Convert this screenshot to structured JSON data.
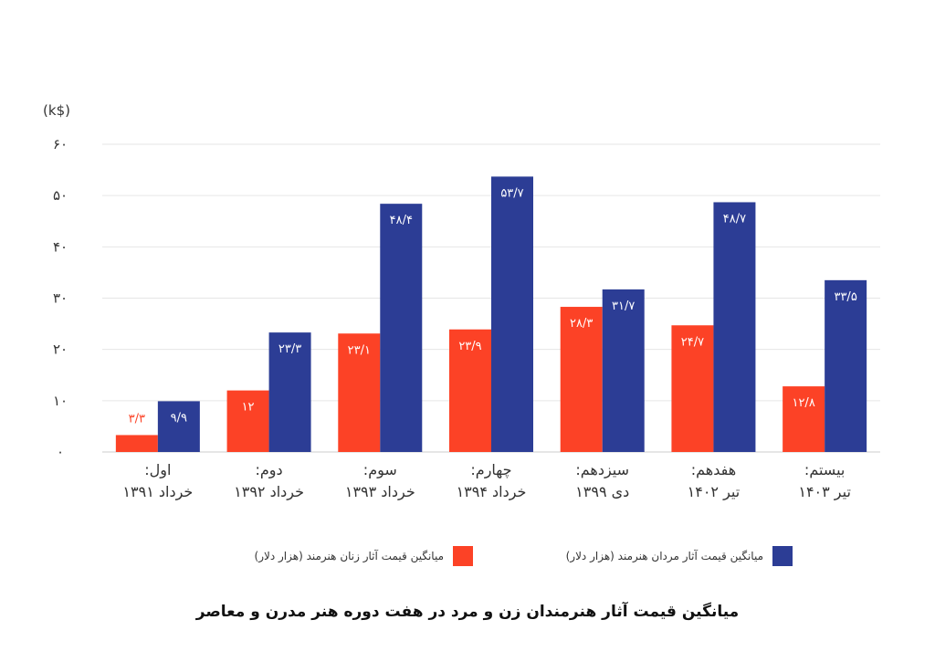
{
  "chart_data": {
    "type": "bar",
    "unit_label": "(k$)",
    "ylim": [
      0,
      60
    ],
    "yticks": [
      0,
      10,
      20,
      30,
      40,
      50,
      60
    ],
    "ytick_labels": [
      "۰",
      "۱۰",
      "۲۰",
      "۳۰",
      "۴۰",
      "۵۰",
      "۶۰"
    ],
    "grid": true,
    "categories": [
      [
        "اول:",
        "خرداد ۱۳۹۱"
      ],
      [
        "دوم:",
        "خرداد ۱۳۹۲"
      ],
      [
        "سوم:",
        "خرداد ۱۳۹۳"
      ],
      [
        "چهارم:",
        "خرداد ۱۳۹۴"
      ],
      [
        "سیزدهم:",
        "دی ۱۳۹۹"
      ],
      [
        "هفدهم:",
        "تیر ۱۴۰۲"
      ],
      [
        "بیستم:",
        "تیر ۱۴۰۳"
      ]
    ],
    "series": [
      {
        "name": "میانگین قیمت آثار زنان هنرمند (هزار دلار)",
        "color": "#fc4226",
        "values": [
          3.3,
          12,
          23.1,
          23.9,
          28.3,
          24.7,
          12.8
        ],
        "labels": [
          "۳/۳",
          "۱۲",
          "۲۳/۱",
          "۲۳/۹",
          "۲۸/۳",
          "۲۴/۷",
          "۱۲/۸"
        ]
      },
      {
        "name": "میانگین قیمت آثار مردان هنرمند (هزار دلار)",
        "color": "#2c3d95",
        "values": [
          9.9,
          23.3,
          48.4,
          53.7,
          31.7,
          48.7,
          33.5
        ],
        "labels": [
          "۹/۹",
          "۲۳/۳",
          "۴۸/۴",
          "۵۳/۷",
          "۳۱/۷",
          "۴۸/۷",
          "۳۳/۵"
        ]
      }
    ],
    "legend": "bottom",
    "title": "میانگین قیمت آثار هنرمندان زن و مرد در هفت دوره هنر مدرن و معاصر"
  }
}
